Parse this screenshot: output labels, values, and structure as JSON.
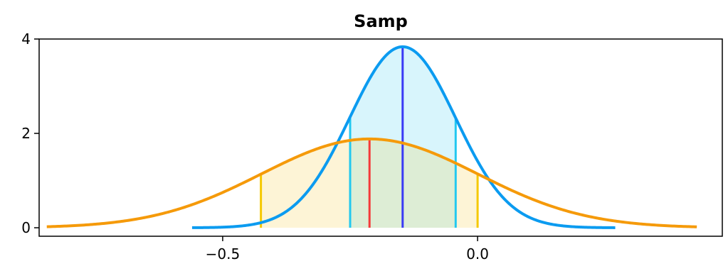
{
  "chart_data": {
    "type": "area",
    "title": "Samp",
    "xlabel": "",
    "ylabel": "",
    "xlim": [
      -0.86,
      0.48
    ],
    "ylim": [
      -0.18,
      4.0
    ],
    "x_ticks": [
      -0.5,
      0.0
    ],
    "x_tick_labels": [
      "−0.5",
      "0.0"
    ],
    "y_ticks": [
      0,
      2,
      4
    ],
    "y_tick_labels": [
      "0",
      "2",
      "4"
    ],
    "grid": false,
    "legend": "none",
    "series": [
      {
        "kind": "normal-density",
        "mean": -0.147,
        "sd": 0.104,
        "x_range": [
          -0.56,
          0.27
        ],
        "color": "#0b9bf0",
        "fill_color": "#d8f5fc",
        "interval": [
          -0.25,
          -0.043
        ],
        "interval_color": "#22c8f0",
        "center_line": -0.147,
        "center_line_color": "#3a3af5"
      },
      {
        "kind": "normal-density",
        "mean": -0.212,
        "sd": 0.212,
        "x_range": [
          -0.845,
          0.43
        ],
        "color": "#f59a0a",
        "fill_color": "#fdf4d6",
        "interval": [
          -0.425,
          0.0
        ],
        "interval_color": "#f5c800",
        "center_line": -0.212,
        "center_line_color": "#f53a3a"
      }
    ],
    "overlap_fill_color": "#ddedd5"
  }
}
